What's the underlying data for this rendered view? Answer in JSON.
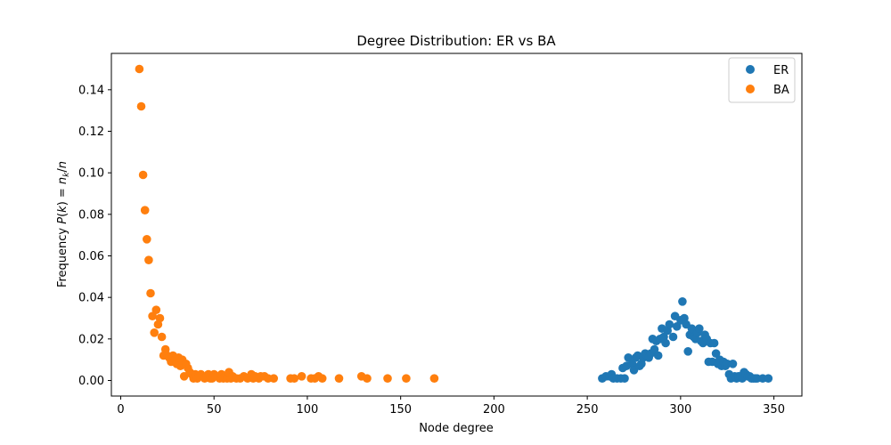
{
  "chart_data": {
    "type": "scatter",
    "title": "Degree Distribution: ER vs BA",
    "xlabel": "Node degree",
    "ylabel_prefix": "Frequency ",
    "ylabel_math": "P(k) = n_k/n",
    "xlim": [
      -5,
      365
    ],
    "ylim": [
      -0.0075,
      0.1575
    ],
    "xticks": [
      0,
      50,
      100,
      150,
      200,
      250,
      300,
      350
    ],
    "xtick_labels": [
      "0",
      "50",
      "100",
      "150",
      "200",
      "250",
      "300",
      "350"
    ],
    "yticks": [
      0.0,
      0.02,
      0.04,
      0.06,
      0.08,
      0.1,
      0.12,
      0.14
    ],
    "ytick_labels": [
      "0.00",
      "0.02",
      "0.04",
      "0.06",
      "0.08",
      "0.10",
      "0.12",
      "0.14"
    ],
    "grid": false,
    "legend_position": "top-right",
    "series": [
      {
        "name": "ER",
        "color": "#1f77b4",
        "points": [
          [
            258,
            0.001
          ],
          [
            260,
            0.002
          ],
          [
            262,
            0.002
          ],
          [
            263,
            0.003
          ],
          [
            264,
            0.001
          ],
          [
            266,
            0.001
          ],
          [
            268,
            0.001
          ],
          [
            269,
            0.006
          ],
          [
            270,
            0.001
          ],
          [
            271,
            0.007
          ],
          [
            272,
            0.011
          ],
          [
            274,
            0.008
          ],
          [
            275,
            0.005
          ],
          [
            276,
            0.011
          ],
          [
            277,
            0.012
          ],
          [
            278,
            0.007
          ],
          [
            279,
            0.008
          ],
          [
            280,
            0.011
          ],
          [
            281,
            0.013
          ],
          [
            282,
            0.012
          ],
          [
            283,
            0.011
          ],
          [
            284,
            0.013
          ],
          [
            285,
            0.02
          ],
          [
            286,
            0.015
          ],
          [
            287,
            0.019
          ],
          [
            288,
            0.012
          ],
          [
            289,
            0.02
          ],
          [
            290,
            0.025
          ],
          [
            291,
            0.021
          ],
          [
            292,
            0.018
          ],
          [
            293,
            0.024
          ],
          [
            294,
            0.027
          ],
          [
            296,
            0.021
          ],
          [
            297,
            0.031
          ],
          [
            298,
            0.026
          ],
          [
            300,
            0.029
          ],
          [
            301,
            0.038
          ],
          [
            302,
            0.03
          ],
          [
            303,
            0.027
          ],
          [
            304,
            0.014
          ],
          [
            305,
            0.022
          ],
          [
            306,
            0.025
          ],
          [
            307,
            0.021
          ],
          [
            308,
            0.02
          ],
          [
            309,
            0.023
          ],
          [
            310,
            0.025
          ],
          [
            311,
            0.019
          ],
          [
            312,
            0.018
          ],
          [
            313,
            0.022
          ],
          [
            314,
            0.02
          ],
          [
            315,
            0.009
          ],
          [
            316,
            0.018
          ],
          [
            317,
            0.009
          ],
          [
            318,
            0.018
          ],
          [
            319,
            0.013
          ],
          [
            320,
            0.008
          ],
          [
            321,
            0.01
          ],
          [
            322,
            0.007
          ],
          [
            323,
            0.009
          ],
          [
            324,
            0.007
          ],
          [
            325,
            0.008
          ],
          [
            326,
            0.003
          ],
          [
            327,
            0.001
          ],
          [
            328,
            0.008
          ],
          [
            329,
            0.002
          ],
          [
            330,
            0.001
          ],
          [
            331,
            0.002
          ],
          [
            332,
            0.002
          ],
          [
            333,
            0.001
          ],
          [
            334,
            0.004
          ],
          [
            335,
            0.003
          ],
          [
            336,
            0.002
          ],
          [
            337,
            0.002
          ],
          [
            338,
            0.001
          ],
          [
            339,
            0.001
          ],
          [
            340,
            0.001
          ],
          [
            341,
            0.001
          ],
          [
            344,
            0.001
          ],
          [
            347,
            0.001
          ]
        ]
      },
      {
        "name": "BA",
        "color": "#ff7f0e",
        "points": [
          [
            10,
            0.15
          ],
          [
            11,
            0.132
          ],
          [
            12,
            0.099
          ],
          [
            13,
            0.082
          ],
          [
            14,
            0.068
          ],
          [
            15,
            0.058
          ],
          [
            16,
            0.042
          ],
          [
            17,
            0.031
          ],
          [
            18,
            0.023
          ],
          [
            19,
            0.034
          ],
          [
            20,
            0.027
          ],
          [
            21,
            0.03
          ],
          [
            22,
            0.021
          ],
          [
            23,
            0.012
          ],
          [
            24,
            0.015
          ],
          [
            25,
            0.012
          ],
          [
            26,
            0.011
          ],
          [
            27,
            0.009
          ],
          [
            28,
            0.012
          ],
          [
            29,
            0.01
          ],
          [
            30,
            0.008
          ],
          [
            31,
            0.011
          ],
          [
            32,
            0.007
          ],
          [
            33,
            0.01
          ],
          [
            34,
            0.002
          ],
          [
            35,
            0.008
          ],
          [
            36,
            0.006
          ],
          [
            37,
            0.004
          ],
          [
            38,
            0.003
          ],
          [
            39,
            0.001
          ],
          [
            40,
            0.003
          ],
          [
            41,
            0.001
          ],
          [
            42,
            0.002
          ],
          [
            43,
            0.003
          ],
          [
            44,
            0.002
          ],
          [
            45,
            0.001
          ],
          [
            46,
            0.002
          ],
          [
            47,
            0.003
          ],
          [
            48,
            0.001
          ],
          [
            49,
            0.001
          ],
          [
            50,
            0.003
          ],
          [
            51,
            0.002
          ],
          [
            53,
            0.001
          ],
          [
            54,
            0.003
          ],
          [
            55,
            0.001
          ],
          [
            56,
            0.002
          ],
          [
            57,
            0.001
          ],
          [
            58,
            0.004
          ],
          [
            59,
            0.001
          ],
          [
            60,
            0.002
          ],
          [
            62,
            0.001
          ],
          [
            64,
            0.001
          ],
          [
            66,
            0.002
          ],
          [
            68,
            0.001
          ],
          [
            70,
            0.003
          ],
          [
            71,
            0.001
          ],
          [
            72,
            0.002
          ],
          [
            74,
            0.001
          ],
          [
            75,
            0.002
          ],
          [
            77,
            0.002
          ],
          [
            79,
            0.001
          ],
          [
            82,
            0.001
          ],
          [
            91,
            0.001
          ],
          [
            93,
            0.001
          ],
          [
            97,
            0.002
          ],
          [
            102,
            0.001
          ],
          [
            104,
            0.001
          ],
          [
            106,
            0.002
          ],
          [
            108,
            0.001
          ],
          [
            117,
            0.001
          ],
          [
            129,
            0.002
          ],
          [
            132,
            0.001
          ],
          [
            143,
            0.001
          ],
          [
            153,
            0.001
          ],
          [
            168,
            0.001
          ]
        ]
      }
    ]
  }
}
